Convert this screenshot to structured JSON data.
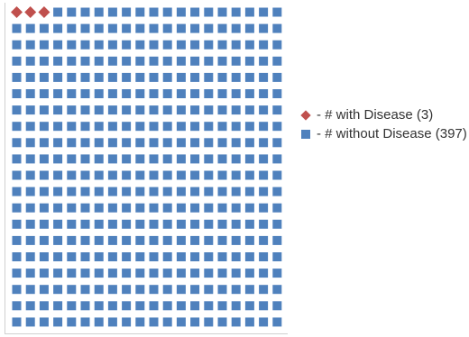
{
  "chart_data": {
    "type": "scatter",
    "title": "",
    "xlabel": "",
    "ylabel": "",
    "grid": false,
    "legend_position": "right",
    "layout": {
      "columns": 20,
      "rows": 20,
      "fill_order": "row-major"
    },
    "series": [
      {
        "name": "# with Disease",
        "count": 3,
        "marker": "diamond",
        "color": "#C0504D",
        "legend_label": "- # with Disease (3)"
      },
      {
        "name": "# without Disease",
        "count": 397,
        "marker": "square",
        "color": "#4F81BD",
        "legend_label": "- # without Disease (397)"
      }
    ]
  }
}
